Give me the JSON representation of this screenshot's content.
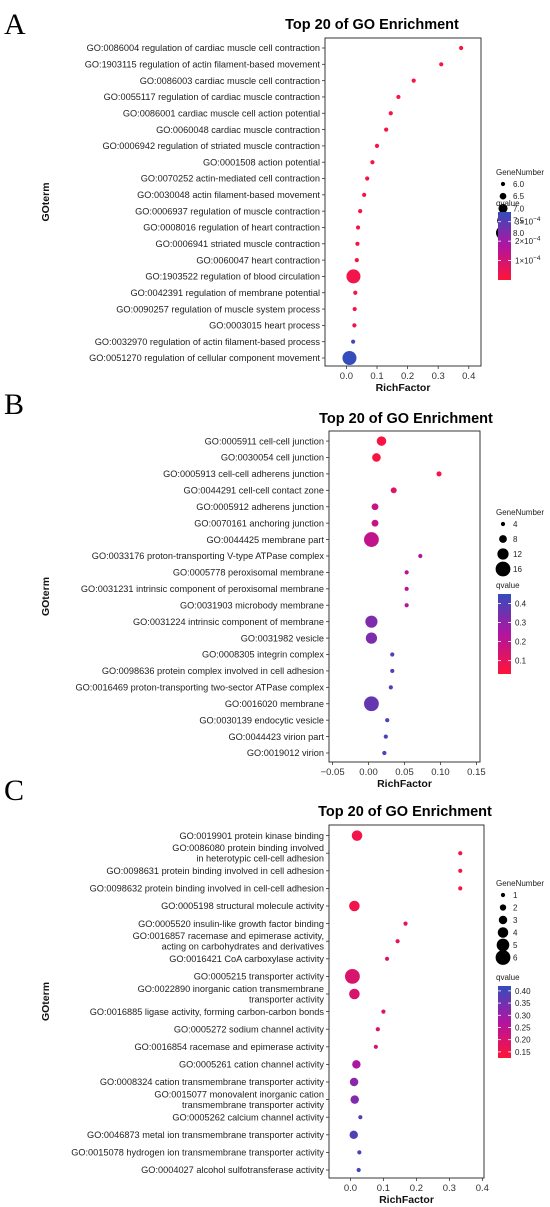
{
  "chart_data": [
    {
      "panel": "A",
      "type": "scatter",
      "title": "Top 20 of GO Enrichment",
      "xlabel": "RichFactor",
      "ylabel": "GOterm",
      "xlim": [
        -0.07,
        0.44
      ],
      "xticks": [
        "0.0",
        "0.1",
        "0.2",
        "0.3",
        "0.4"
      ],
      "xtick_values": [
        0,
        0.1,
        0.2,
        0.3,
        0.4
      ],
      "grid": false,
      "legend_position": "right",
      "size_legend": {
        "title": "GeneNumber",
        "values": [
          6,
          6.5,
          7,
          7.5,
          8
        ],
        "labels": [
          "6.0",
          "6.5",
          "7.0",
          "7.5",
          "8.0"
        ]
      },
      "color_legend": {
        "title": "qvalue",
        "min": 0,
        "max": 0.00035,
        "ticks": [
          0.0003,
          0.0002,
          0.0001
        ],
        "tick_labels": [
          {
            "m": "3×10",
            "e": "−4"
          },
          {
            "m": "2×10",
            "e": "−4"
          },
          {
            "m": "1×10",
            "e": "−4"
          }
        ]
      },
      "categories": [
        [
          "GO:0086004 regulation of cardiac muscle cell contraction"
        ],
        [
          "GO:1903115 regulation of actin filament-based movement"
        ],
        [
          "GO:0086003 cardiac muscle cell contraction"
        ],
        [
          "GO:0055117 regulation of cardiac muscle contraction"
        ],
        [
          "GO:0086001 cardiac muscle cell action potential"
        ],
        [
          "GO:0060048 cardiac muscle contraction"
        ],
        [
          "GO:0006942 regulation of striated muscle contraction"
        ],
        [
          "GO:0001508 action potential"
        ],
        [
          "GO:0070252 actin-mediated cell contraction"
        ],
        [
          "GO:0030048 actin filament-based movement"
        ],
        [
          "GO:0006937 regulation of muscle contraction"
        ],
        [
          "GO:0008016 regulation of heart contraction"
        ],
        [
          "GO:0006941 striated muscle contraction"
        ],
        [
          "GO:0060047 heart contraction"
        ],
        [
          "GO:1903522 regulation of blood circulation"
        ],
        [
          "GO:0042391 regulation of membrane potential"
        ],
        [
          "GO:0090257 regulation of muscle system process"
        ],
        [
          "GO:0003015 heart process"
        ],
        [
          "GO:0032970 regulation of actin filament-based process"
        ],
        [
          "GO:0051270 regulation of cellular component movement"
        ]
      ],
      "rich_factor": [
        0.375,
        0.31,
        0.22,
        0.17,
        0.145,
        0.13,
        0.1,
        0.085,
        0.068,
        0.058,
        0.045,
        0.038,
        0.036,
        0.034,
        0.023,
        0.029,
        0.027,
        0.026,
        0.022,
        0.01
      ],
      "gene_number": [
        6,
        6,
        6,
        6,
        6,
        6,
        6,
        6,
        6,
        6,
        6,
        6,
        6,
        6,
        8,
        6,
        6,
        6,
        6,
        8
      ],
      "qvalue": [
        2e-05,
        2e-05,
        2e-05,
        2e-05,
        2e-05,
        2e-05,
        2e-05,
        2e-05,
        2e-05,
        2e-05,
        2e-05,
        2e-05,
        2e-05,
        2e-05,
        3e-05,
        3e-05,
        3e-05,
        4e-05,
        0.00033,
        0.00035
      ]
    },
    {
      "panel": "B",
      "type": "scatter",
      "title": "Top 20 of GO Enrichment",
      "xlabel": "RichFactor",
      "ylabel": "GOterm",
      "xlim": [
        -0.055,
        0.155
      ],
      "xticks": [
        "−0.05",
        "0.00",
        "0.05",
        "0.10",
        "0.15"
      ],
      "xtick_values": [
        -0.05,
        0,
        0.05,
        0.1,
        0.15
      ],
      "grid": false,
      "legend_position": "right",
      "size_legend": {
        "title": "GeneNumber",
        "values": [
          4,
          8,
          12,
          16
        ],
        "labels": [
          "4",
          "8",
          "12",
          "16"
        ]
      },
      "color_legend": {
        "title": "qvalue",
        "min": 0.03,
        "max": 0.45,
        "ticks": [
          0.4,
          0.3,
          0.2,
          0.1
        ],
        "tick_labels": [
          {
            "m": "0.4",
            "e": ""
          },
          {
            "m": "0.3",
            "e": ""
          },
          {
            "m": "0.2",
            "e": ""
          },
          {
            "m": "0.1",
            "e": ""
          }
        ]
      },
      "categories": [
        [
          "GO:0005911 cell-cell junction"
        ],
        [
          "GO:0030054 cell junction"
        ],
        [
          "GO:0005913 cell-cell adherens junction"
        ],
        [
          "GO:0044291 cell-cell contact zone"
        ],
        [
          "GO:0005912 adherens junction"
        ],
        [
          "GO:0070161 anchoring junction"
        ],
        [
          "GO:0044425 membrane part"
        ],
        [
          "GO:0033176 proton-transporting V-type ATPase complex"
        ],
        [
          "GO:0005778 peroxisomal membrane"
        ],
        [
          "GO:0031231 intrinsic component of peroxisomal membrane"
        ],
        [
          "GO:0031903 microbody membrane"
        ],
        [
          "GO:0031224 intrinsic component of membrane"
        ],
        [
          "GO:0031982 vesicle"
        ],
        [
          "GO:0008305 integrin complex"
        ],
        [
          "GO:0098636 protein complex involved in cell adhesion"
        ],
        [
          "GO:0016469 proton-transporting two-sector ATPase complex"
        ],
        [
          "GO:0016020 membrane"
        ],
        [
          "GO:0030139 endocytic vesicle"
        ],
        [
          "GO:0044423 virion part"
        ],
        [
          "GO:0019012 virion"
        ]
      ],
      "rich_factor": [
        0.018,
        0.011,
        0.098,
        0.035,
        0.009,
        0.009,
        0.004,
        0.072,
        0.053,
        0.053,
        0.053,
        0.004,
        0.004,
        0.033,
        0.033,
        0.031,
        0.004,
        0.026,
        0.024,
        0.022
      ],
      "gene_number": [
        10,
        9,
        5,
        6,
        7,
        7,
        16,
        4,
        4,
        4,
        4,
        13,
        12,
        4,
        4,
        4,
        16,
        4,
        4,
        4
      ],
      "qvalue": [
        0.05,
        0.05,
        0.06,
        0.12,
        0.18,
        0.18,
        0.2,
        0.25,
        0.22,
        0.22,
        0.22,
        0.33,
        0.33,
        0.4,
        0.4,
        0.4,
        0.37,
        0.42,
        0.42,
        0.42
      ]
    },
    {
      "panel": "C",
      "type": "scatter",
      "title": "Top 20 of GO Enrichment",
      "xlabel": "RichFactor",
      "ylabel": "GOterm",
      "xlim": [
        -0.065,
        0.405
      ],
      "xticks": [
        "0.0",
        "0.1",
        "0.2",
        "0.3",
        "0.4"
      ],
      "xtick_values": [
        0,
        0.1,
        0.2,
        0.3,
        0.4
      ],
      "grid": false,
      "legend_position": "right",
      "size_legend": {
        "title": "GeneNumber",
        "values": [
          1,
          2,
          3,
          4,
          5,
          6
        ],
        "labels": [
          "1",
          "2",
          "3",
          "4",
          "5",
          "6"
        ]
      },
      "color_legend": {
        "title": "qvalue",
        "min": 0.125,
        "max": 0.42,
        "ticks": [
          0.4,
          0.35,
          0.3,
          0.25,
          0.2,
          0.15
        ],
        "tick_labels": [
          {
            "m": "0.40",
            "e": ""
          },
          {
            "m": "0.35",
            "e": ""
          },
          {
            "m": "0.30",
            "e": ""
          },
          {
            "m": "0.25",
            "e": ""
          },
          {
            "m": "0.20",
            "e": ""
          },
          {
            "m": "0.15",
            "e": ""
          }
        ]
      },
      "categories": [
        [
          "GO:0019901 protein kinase binding"
        ],
        [
          "GO:0086080 protein binding involved",
          "in heterotypic cell-cell adhesion"
        ],
        [
          "GO:0098631 protein binding involved in cell adhesion"
        ],
        [
          "GO:0098632 protein binding involved in cell-cell adhesion"
        ],
        [
          "GO:0005198 structural molecule activity"
        ],
        [
          "GO:0005520 insulin-like growth factor binding"
        ],
        [
          "GO:0016857 racemase and epimerase activity,",
          "acting on carbohydrates and derivatives"
        ],
        [
          "GO:0016421 CoA carboxylase activity"
        ],
        [
          "GO:0005215 transporter activity"
        ],
        [
          "GO:0022890 inorganic cation transmembrane",
          "transporter activity"
        ],
        [
          "GO:0016885 ligase activity, forming carbon-carbon bonds"
        ],
        [
          "GO:0005272 sodium channel activity"
        ],
        [
          "GO:0016854 racemase and epimerase activity"
        ],
        [
          "GO:0005261 cation channel activity"
        ],
        [
          "GO:0008324 cation transmembrane transporter activity"
        ],
        [
          "GO:0015077 monovalent inorganic cation",
          "transmembrane transporter activity"
        ],
        [
          "GO:0005262 calcium channel activity"
        ],
        [
          "GO:0046873 metal ion transmembrane transporter activity"
        ],
        [
          "GO:0015078 hydrogen ion transmembrane transporter activity"
        ],
        [
          "GO:0004027 alcohol sulfotransferase activity"
        ]
      ],
      "rich_factor": [
        0.02,
        0.333,
        0.333,
        0.333,
        0.012,
        0.167,
        0.143,
        0.111,
        0.006,
        0.012,
        0.1,
        0.083,
        0.077,
        0.018,
        0.011,
        0.013,
        0.03,
        0.01,
        0.027,
        0.025
      ],
      "gene_number": [
        4,
        1,
        1,
        1,
        4,
        1,
        1,
        1,
        6,
        4,
        1,
        1,
        1,
        3,
        3,
        3,
        1,
        3,
        1,
        1
      ],
      "qvalue": [
        0.15,
        0.15,
        0.15,
        0.15,
        0.15,
        0.17,
        0.18,
        0.19,
        0.2,
        0.2,
        0.2,
        0.2,
        0.22,
        0.28,
        0.32,
        0.33,
        0.38,
        0.39,
        0.4,
        0.4
      ]
    }
  ]
}
